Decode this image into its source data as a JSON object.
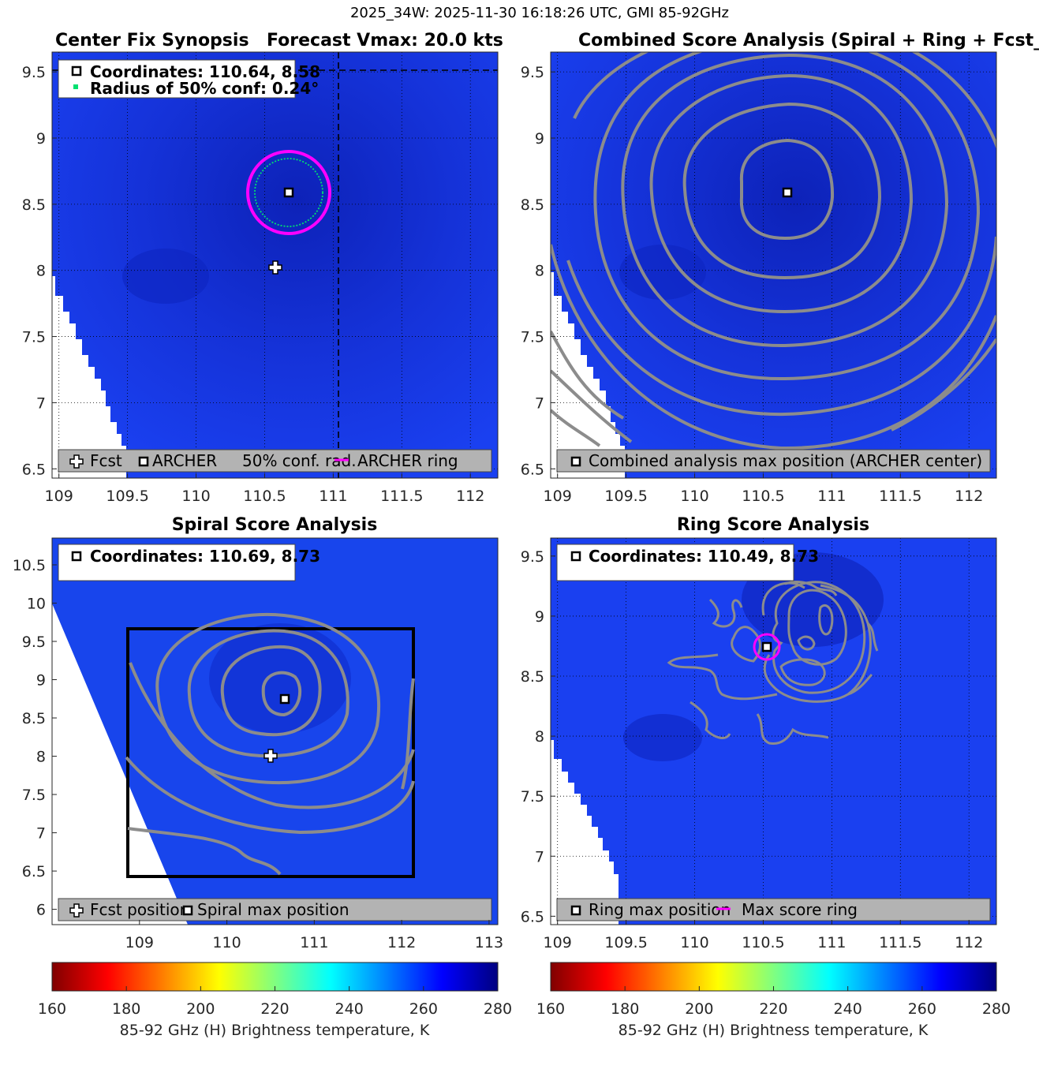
{
  "suptitle": "2025_34W: 2025-11-30 16:18:26 UTC, GMI 85-92GHz",
  "colors": {
    "background": "#1a40f0",
    "background_dark": "#0b1fb4",
    "contour": "#8c8c8c",
    "ring": "#ff00ff",
    "conf": "#00e070",
    "legend_bg": "#b3b3b3"
  },
  "colorbar": {
    "label": "85-92 GHz (H) Brightness temperature, K",
    "ticks": [
      "160",
      "180",
      "200",
      "220",
      "240",
      "260",
      "280"
    ],
    "range": [
      160,
      280
    ],
    "colormap": "jet-reversed"
  },
  "chart_data": [
    {
      "type": "heatmap",
      "title_left": "Center Fix Synopsis",
      "title_right": "Forecast Vmax: 20.0 kts",
      "xlim": [
        108.95,
        112.2
      ],
      "ylim": [
        6.43,
        9.65
      ],
      "xticks": [
        "109",
        "109.5",
        "110",
        "110.5",
        "111",
        "111.5",
        "112"
      ],
      "yticks": [
        "6.5",
        "7",
        "7.5",
        "8",
        "8.5",
        "9",
        "9.5"
      ],
      "grid": true,
      "center": [
        110.64,
        8.58
      ],
      "forecast": [
        110.55,
        8.02
      ],
      "dashed_crosshair": [
        111.0,
        9.5
      ],
      "info": [
        "Coordinates: 110.64, 8.58",
        "Radius of 50% conf: 0.24°"
      ],
      "legend": [
        "Fcst",
        "ARCHER",
        "50% conf. rad.",
        "ARCHER ring"
      ]
    },
    {
      "type": "heatmap",
      "title": "Combined Score Analysis (Spiral + Ring + Fcst_Pe",
      "xlim": [
        108.95,
        112.2
      ],
      "ylim": [
        6.43,
        9.65
      ],
      "xticks": [
        "109",
        "109.5",
        "110",
        "110.5",
        "111",
        "111.5",
        "112"
      ],
      "yticks": [
        "6.5",
        "7",
        "7.5",
        "8",
        "8.5",
        "9",
        "9.5"
      ],
      "grid": true,
      "center": [
        110.64,
        8.58
      ],
      "legend": [
        "Combined analysis max position (ARCHER center)"
      ]
    },
    {
      "type": "heatmap",
      "title": "Spiral Score Analysis",
      "xlim": [
        108.0,
        113.1
      ],
      "ylim": [
        5.8,
        10.85
      ],
      "xticks": [
        "109",
        "110",
        "111",
        "112",
        "113"
      ],
      "yticks": [
        "6",
        "6.5",
        "7",
        "7.5",
        "8",
        "8.5",
        "9",
        "9.5",
        "10",
        "10.5"
      ],
      "grid": false,
      "center": [
        110.69,
        8.73
      ],
      "forecast": [
        110.55,
        8.02
      ],
      "box": [
        [
          108.95,
          6.45
        ],
        [
          112.2,
          9.65
        ]
      ],
      "info": [
        "Coordinates: 110.69, 8.73"
      ],
      "legend": [
        "Fcst position",
        "Spiral max position"
      ]
    },
    {
      "type": "heatmap",
      "title": "Ring Score Analysis",
      "xlim": [
        108.95,
        112.2
      ],
      "ylim": [
        6.43,
        9.65
      ],
      "xticks": [
        "109",
        "109.5",
        "110",
        "110.5",
        "111",
        "111.5",
        "112"
      ],
      "yticks": [
        "6.5",
        "7",
        "7.5",
        "8",
        "8.5",
        "9",
        "9.5"
      ],
      "grid": true,
      "center": [
        110.49,
        8.73
      ],
      "info": [
        "Coordinates: 110.49, 8.73"
      ],
      "legend": [
        "Ring max position",
        "Max score ring"
      ]
    }
  ]
}
